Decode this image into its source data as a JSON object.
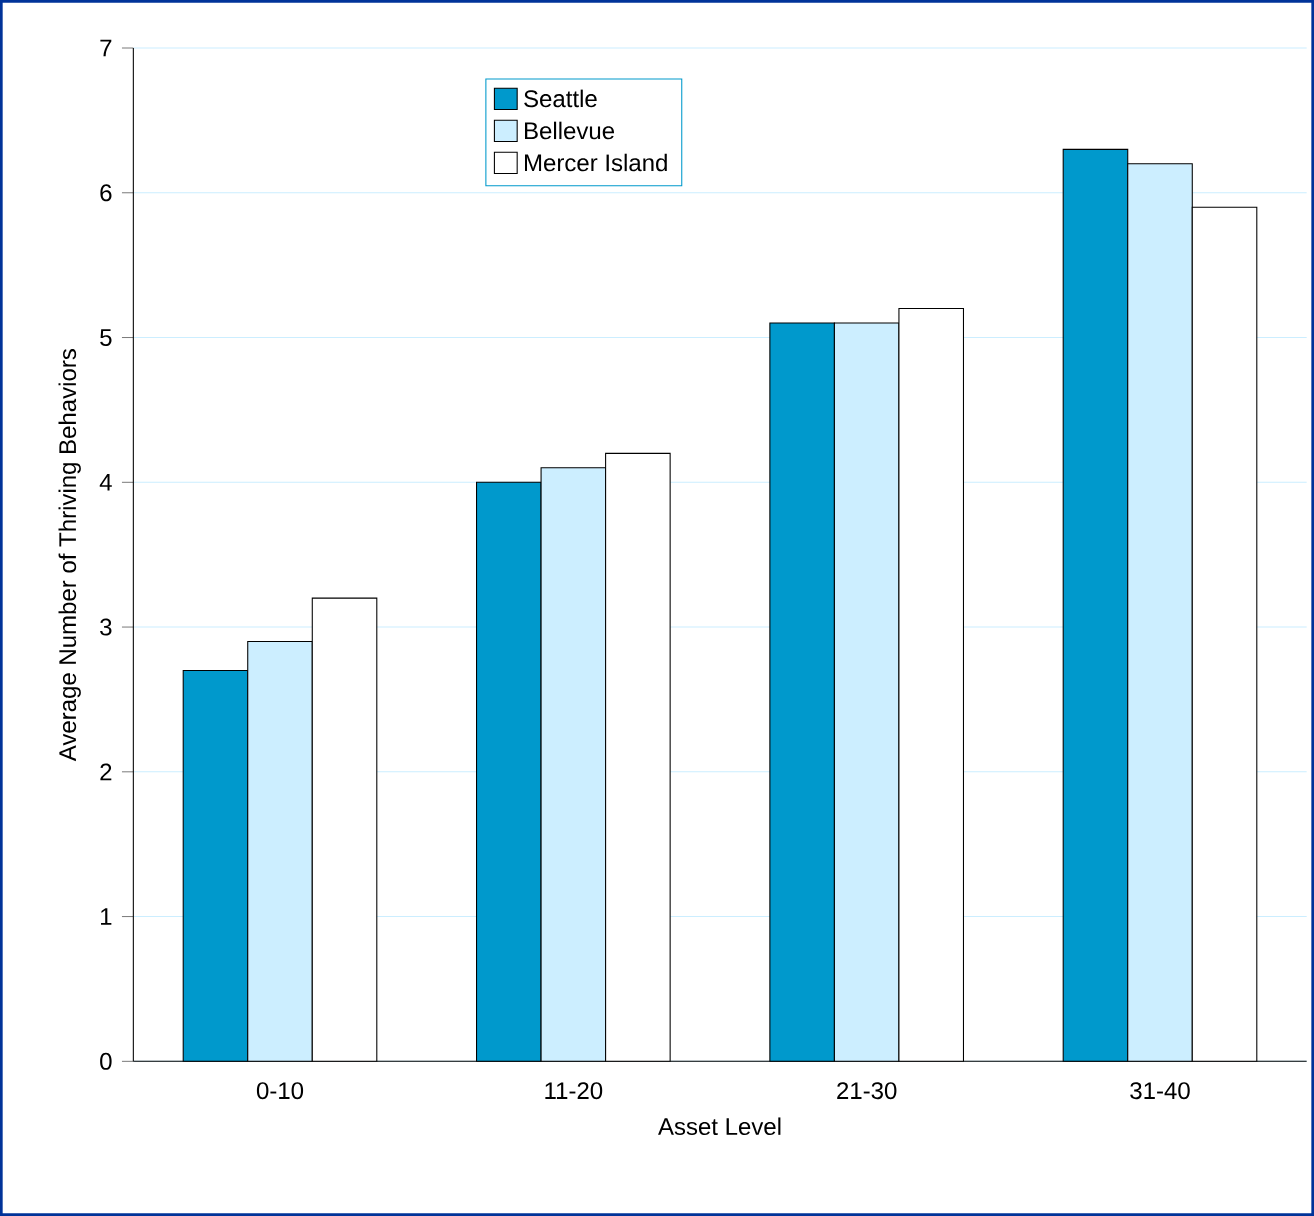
{
  "chart_data": {
    "type": "bar",
    "xlabel": "Asset Level",
    "ylabel": "Average Number of Thriving Behaviors",
    "categories": [
      "0-10",
      "11-20",
      "21-30",
      "31-40"
    ],
    "series": [
      {
        "name": "Seattle",
        "color": "#0099cc",
        "values": [
          2.7,
          4.0,
          5.1,
          6.3
        ]
      },
      {
        "name": "Bellevue",
        "color": "#cceeff",
        "values": [
          2.9,
          4.1,
          5.1,
          6.2
        ]
      },
      {
        "name": "Mercer Island",
        "color": "#ffffff",
        "values": [
          3.2,
          4.2,
          5.2,
          5.9
        ]
      }
    ],
    "ylim": [
      0,
      7
    ],
    "yticks": [
      0,
      1,
      2,
      3,
      4,
      5,
      6,
      7
    ],
    "grid": "y",
    "legend": "top"
  }
}
